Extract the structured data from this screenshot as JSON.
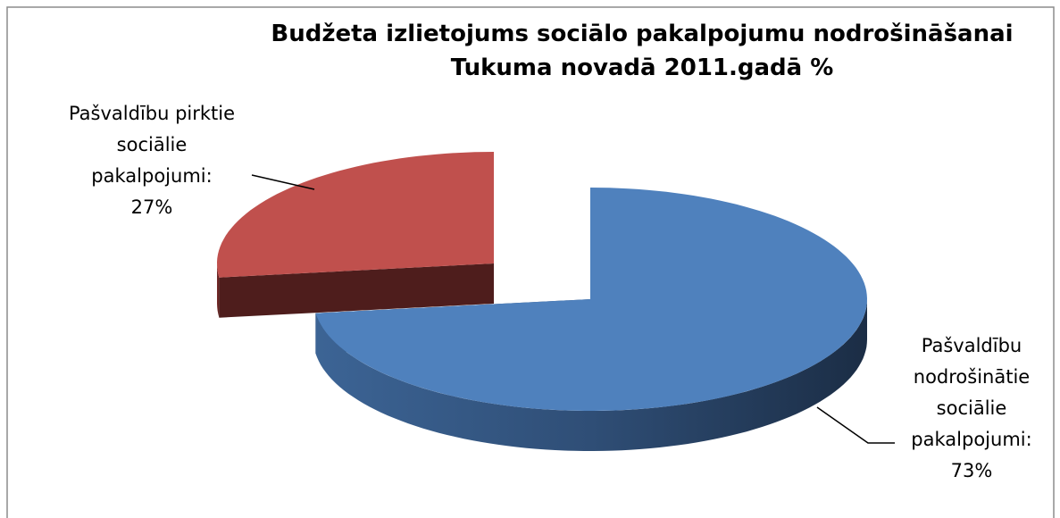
{
  "chart_data": {
    "type": "pie3d",
    "title": [
      "Budžeta izlietojums sociālo pakalpojumu nodrošināšanai",
      "Tukuma novadā 2011.gadā %"
    ],
    "categories": [
      "Pašvaldību nodrošinātie sociālie pakalpojumi:",
      "Pašvaldību pirktie sociālie pakalpojumi:"
    ],
    "values": [
      73,
      27
    ],
    "value_labels": [
      "73%",
      "27%"
    ],
    "colors": [
      "#4f81bd",
      "#c0504d"
    ]
  }
}
